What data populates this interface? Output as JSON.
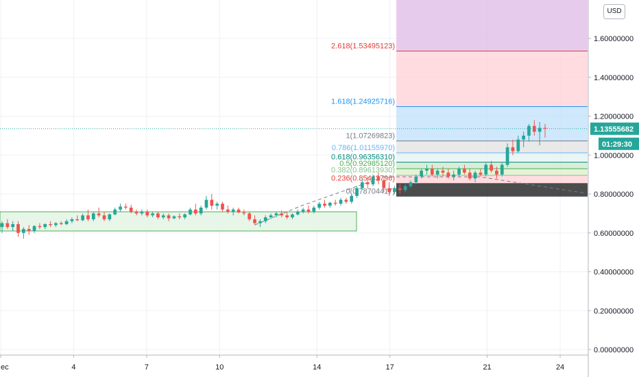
{
  "currency": "USD",
  "price_label": "1.13555682",
  "countdown": "01:29:30",
  "colors": {
    "up": "#26a69a",
    "down": "#ef5350",
    "grid": "#eef0f3",
    "price_line": "#26a69a",
    "countdown_bg": "#26a69a",
    "zone": "#4caf50"
  },
  "chart_data": {
    "type": "candlestick",
    "y_axis": {
      "range": [
        -0.02,
        1.88
      ],
      "ticks": [
        "0.00000000",
        "0.20000000",
        "0.40000000",
        "0.60000000",
        "0.80000000",
        "1.00000000",
        "1.20000000",
        "1.40000000",
        "1.60000000"
      ],
      "tick_values": [
        0,
        0.2,
        0.4,
        0.6,
        0.8,
        1.0,
        1.2,
        1.4,
        1.6
      ]
    },
    "x_axis": {
      "ticks": [
        "ec",
        "4",
        "7",
        "10",
        "14",
        "17",
        "21",
        "24"
      ],
      "tick_positions": [
        1,
        4,
        7,
        10,
        14,
        17,
        21,
        24
      ],
      "range": [
        1,
        25.5
      ]
    },
    "fib_levels": [
      {
        "label": "2.618(1.53495123)",
        "value": 1.53495123,
        "color": "#e53935"
      },
      {
        "label": "1.618(1.24925716)",
        "value": 1.24925716,
        "color": "#2196f3"
      },
      {
        "label": "1(1.07269823)",
        "value": 1.07269823,
        "color": "#787b86"
      },
      {
        "label": "0.786(1.01155970)",
        "value": 1.0115597,
        "color": "#64b5f6"
      },
      {
        "label": "0.618(0.96356310)",
        "value": 0.9635631,
        "color": "#00897b"
      },
      {
        "label": "0.5(0.92985120)",
        "value": 0.9298512,
        "color": "#4caf50"
      },
      {
        "label": "0.382(0.89613930)",
        "value": 0.8961393,
        "color": "#81c784"
      },
      {
        "label": "0.236(0.85442796)",
        "value": 0.85442796,
        "color": "#e53935"
      },
      {
        "label": "0(0.78704417)",
        "value": 0.78704417,
        "color": "#787b86"
      }
    ],
    "current_price": 1.13555682,
    "candles": [
      {
        "o": 0.63,
        "h": 0.66,
        "l": 0.6,
        "c": 0.65
      },
      {
        "o": 0.65,
        "h": 0.67,
        "l": 0.62,
        "c": 0.63
      },
      {
        "o": 0.63,
        "h": 0.66,
        "l": 0.61,
        "c": 0.645
      },
      {
        "o": 0.645,
        "h": 0.66,
        "l": 0.58,
        "c": 0.6
      },
      {
        "o": 0.6,
        "h": 0.63,
        "l": 0.57,
        "c": 0.62
      },
      {
        "o": 0.62,
        "h": 0.64,
        "l": 0.59,
        "c": 0.61
      },
      {
        "o": 0.61,
        "h": 0.64,
        "l": 0.6,
        "c": 0.635
      },
      {
        "o": 0.635,
        "h": 0.65,
        "l": 0.62,
        "c": 0.63
      },
      {
        "o": 0.63,
        "h": 0.65,
        "l": 0.62,
        "c": 0.645
      },
      {
        "o": 0.645,
        "h": 0.66,
        "l": 0.63,
        "c": 0.64
      },
      {
        "o": 0.64,
        "h": 0.655,
        "l": 0.63,
        "c": 0.65
      },
      {
        "o": 0.65,
        "h": 0.66,
        "l": 0.64,
        "c": 0.645
      },
      {
        "o": 0.645,
        "h": 0.67,
        "l": 0.64,
        "c": 0.66
      },
      {
        "o": 0.66,
        "h": 0.68,
        "l": 0.65,
        "c": 0.67
      },
      {
        "o": 0.67,
        "h": 0.69,
        "l": 0.66,
        "c": 0.665
      },
      {
        "o": 0.665,
        "h": 0.7,
        "l": 0.66,
        "c": 0.69
      },
      {
        "o": 0.69,
        "h": 0.72,
        "l": 0.66,
        "c": 0.67
      },
      {
        "o": 0.67,
        "h": 0.71,
        "l": 0.66,
        "c": 0.7
      },
      {
        "o": 0.7,
        "h": 0.73,
        "l": 0.68,
        "c": 0.69
      },
      {
        "o": 0.69,
        "h": 0.71,
        "l": 0.66,
        "c": 0.67
      },
      {
        "o": 0.67,
        "h": 0.7,
        "l": 0.66,
        "c": 0.695
      },
      {
        "o": 0.695,
        "h": 0.73,
        "l": 0.69,
        "c": 0.72
      },
      {
        "o": 0.72,
        "h": 0.75,
        "l": 0.71,
        "c": 0.735
      },
      {
        "o": 0.735,
        "h": 0.75,
        "l": 0.72,
        "c": 0.73
      },
      {
        "o": 0.73,
        "h": 0.745,
        "l": 0.7,
        "c": 0.71
      },
      {
        "o": 0.71,
        "h": 0.72,
        "l": 0.69,
        "c": 0.7
      },
      {
        "o": 0.7,
        "h": 0.72,
        "l": 0.69,
        "c": 0.71
      },
      {
        "o": 0.71,
        "h": 0.72,
        "l": 0.68,
        "c": 0.69
      },
      {
        "o": 0.69,
        "h": 0.71,
        "l": 0.68,
        "c": 0.7
      },
      {
        "o": 0.7,
        "h": 0.71,
        "l": 0.67,
        "c": 0.68
      },
      {
        "o": 0.68,
        "h": 0.7,
        "l": 0.67,
        "c": 0.69
      },
      {
        "o": 0.69,
        "h": 0.7,
        "l": 0.66,
        "c": 0.675
      },
      {
        "o": 0.675,
        "h": 0.69,
        "l": 0.67,
        "c": 0.685
      },
      {
        "o": 0.685,
        "h": 0.7,
        "l": 0.67,
        "c": 0.68
      },
      {
        "o": 0.68,
        "h": 0.7,
        "l": 0.67,
        "c": 0.695
      },
      {
        "o": 0.695,
        "h": 0.73,
        "l": 0.69,
        "c": 0.72
      },
      {
        "o": 0.72,
        "h": 0.75,
        "l": 0.69,
        "c": 0.7
      },
      {
        "o": 0.7,
        "h": 0.74,
        "l": 0.69,
        "c": 0.73
      },
      {
        "o": 0.73,
        "h": 0.79,
        "l": 0.72,
        "c": 0.77
      },
      {
        "o": 0.77,
        "h": 0.8,
        "l": 0.72,
        "c": 0.74
      },
      {
        "o": 0.74,
        "h": 0.76,
        "l": 0.72,
        "c": 0.75
      },
      {
        "o": 0.75,
        "h": 0.76,
        "l": 0.71,
        "c": 0.72
      },
      {
        "o": 0.72,
        "h": 0.74,
        "l": 0.7,
        "c": 0.71
      },
      {
        "o": 0.71,
        "h": 0.73,
        "l": 0.69,
        "c": 0.72
      },
      {
        "o": 0.72,
        "h": 0.73,
        "l": 0.7,
        "c": 0.705
      },
      {
        "o": 0.705,
        "h": 0.72,
        "l": 0.69,
        "c": 0.7
      },
      {
        "o": 0.7,
        "h": 0.71,
        "l": 0.66,
        "c": 0.67
      },
      {
        "o": 0.67,
        "h": 0.69,
        "l": 0.64,
        "c": 0.65
      },
      {
        "o": 0.65,
        "h": 0.67,
        "l": 0.63,
        "c": 0.66
      },
      {
        "o": 0.66,
        "h": 0.69,
        "l": 0.65,
        "c": 0.68
      },
      {
        "o": 0.68,
        "h": 0.7,
        "l": 0.67,
        "c": 0.69
      },
      {
        "o": 0.69,
        "h": 0.71,
        "l": 0.68,
        "c": 0.7
      },
      {
        "o": 0.7,
        "h": 0.715,
        "l": 0.68,
        "c": 0.69
      },
      {
        "o": 0.69,
        "h": 0.71,
        "l": 0.67,
        "c": 0.68
      },
      {
        "o": 0.68,
        "h": 0.7,
        "l": 0.67,
        "c": 0.695
      },
      {
        "o": 0.695,
        "h": 0.72,
        "l": 0.69,
        "c": 0.71
      },
      {
        "o": 0.71,
        "h": 0.73,
        "l": 0.7,
        "c": 0.72
      },
      {
        "o": 0.72,
        "h": 0.74,
        "l": 0.7,
        "c": 0.71
      },
      {
        "o": 0.71,
        "h": 0.74,
        "l": 0.7,
        "c": 0.73
      },
      {
        "o": 0.73,
        "h": 0.76,
        "l": 0.72,
        "c": 0.75
      },
      {
        "o": 0.75,
        "h": 0.77,
        "l": 0.73,
        "c": 0.74
      },
      {
        "o": 0.74,
        "h": 0.76,
        "l": 0.73,
        "c": 0.755
      },
      {
        "o": 0.755,
        "h": 0.77,
        "l": 0.74,
        "c": 0.75
      },
      {
        "o": 0.75,
        "h": 0.78,
        "l": 0.74,
        "c": 0.77
      },
      {
        "o": 0.77,
        "h": 0.78,
        "l": 0.75,
        "c": 0.76
      },
      {
        "o": 0.76,
        "h": 0.8,
        "l": 0.75,
        "c": 0.79
      },
      {
        "o": 0.79,
        "h": 0.84,
        "l": 0.78,
        "c": 0.83
      },
      {
        "o": 0.83,
        "h": 0.88,
        "l": 0.82,
        "c": 0.86
      },
      {
        "o": 0.86,
        "h": 0.89,
        "l": 0.83,
        "c": 0.85
      },
      {
        "o": 0.85,
        "h": 0.9,
        "l": 0.84,
        "c": 0.89
      },
      {
        "o": 0.89,
        "h": 0.91,
        "l": 0.85,
        "c": 0.87
      },
      {
        "o": 0.87,
        "h": 0.88,
        "l": 0.81,
        "c": 0.83
      },
      {
        "o": 0.83,
        "h": 0.86,
        "l": 0.79,
        "c": 0.81
      },
      {
        "o": 0.81,
        "h": 0.84,
        "l": 0.8,
        "c": 0.83
      },
      {
        "o": 0.83,
        "h": 0.85,
        "l": 0.8,
        "c": 0.82
      },
      {
        "o": 0.82,
        "h": 0.85,
        "l": 0.81,
        "c": 0.84
      },
      {
        "o": 0.84,
        "h": 0.87,
        "l": 0.83,
        "c": 0.86
      },
      {
        "o": 0.86,
        "h": 0.9,
        "l": 0.85,
        "c": 0.89
      },
      {
        "o": 0.89,
        "h": 0.93,
        "l": 0.88,
        "c": 0.92
      },
      {
        "o": 0.92,
        "h": 0.95,
        "l": 0.9,
        "c": 0.93
      },
      {
        "o": 0.93,
        "h": 0.95,
        "l": 0.89,
        "c": 0.9
      },
      {
        "o": 0.9,
        "h": 0.93,
        "l": 0.88,
        "c": 0.92
      },
      {
        "o": 0.92,
        "h": 0.94,
        "l": 0.89,
        "c": 0.91
      },
      {
        "o": 0.91,
        "h": 0.93,
        "l": 0.88,
        "c": 0.89
      },
      {
        "o": 0.89,
        "h": 0.92,
        "l": 0.87,
        "c": 0.9
      },
      {
        "o": 0.9,
        "h": 0.94,
        "l": 0.89,
        "c": 0.93
      },
      {
        "o": 0.93,
        "h": 0.95,
        "l": 0.9,
        "c": 0.91
      },
      {
        "o": 0.91,
        "h": 0.93,
        "l": 0.87,
        "c": 0.88
      },
      {
        "o": 0.88,
        "h": 0.92,
        "l": 0.86,
        "c": 0.91
      },
      {
        "o": 0.91,
        "h": 0.93,
        "l": 0.89,
        "c": 0.9
      },
      {
        "o": 0.9,
        "h": 0.96,
        "l": 0.89,
        "c": 0.95
      },
      {
        "o": 0.95,
        "h": 0.97,
        "l": 0.91,
        "c": 0.92
      },
      {
        "o": 0.92,
        "h": 0.94,
        "l": 0.88,
        "c": 0.9
      },
      {
        "o": 0.9,
        "h": 0.96,
        "l": 0.89,
        "c": 0.95
      },
      {
        "o": 0.95,
        "h": 1.06,
        "l": 0.94,
        "c": 1.04
      },
      {
        "o": 1.04,
        "h": 1.08,
        "l": 1.0,
        "c": 1.02
      },
      {
        "o": 1.02,
        "h": 1.1,
        "l": 1.01,
        "c": 1.08
      },
      {
        "o": 1.08,
        "h": 1.12,
        "l": 1.04,
        "c": 1.1
      },
      {
        "o": 1.1,
        "h": 1.16,
        "l": 1.07,
        "c": 1.15
      },
      {
        "o": 1.15,
        "h": 1.18,
        "l": 1.1,
        "c": 1.12
      },
      {
        "o": 1.12,
        "h": 1.17,
        "l": 1.05,
        "c": 1.14
      },
      {
        "o": 1.14,
        "h": 1.16,
        "l": 1.09,
        "c": 1.1356
      }
    ]
  }
}
